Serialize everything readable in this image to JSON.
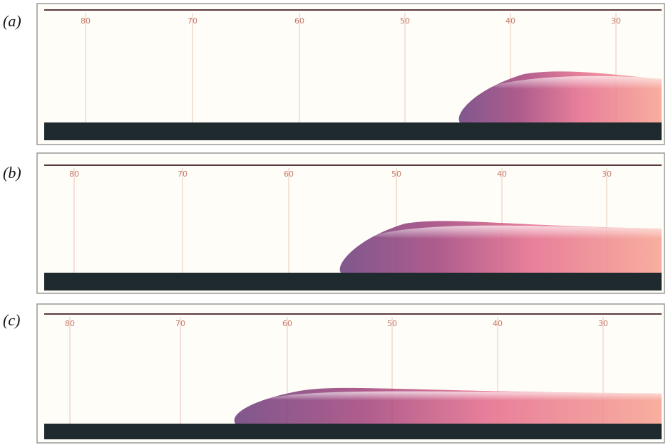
{
  "panels": [
    {
      "label": "(a)",
      "scale": [
        80,
        70,
        60,
        50,
        40,
        30
      ]
    },
    {
      "label": "(b)",
      "scale": [
        80,
        70,
        60,
        50,
        40,
        30
      ]
    },
    {
      "label": "(c)",
      "scale": [
        80,
        70,
        60,
        50,
        40,
        30
      ]
    }
  ]
}
